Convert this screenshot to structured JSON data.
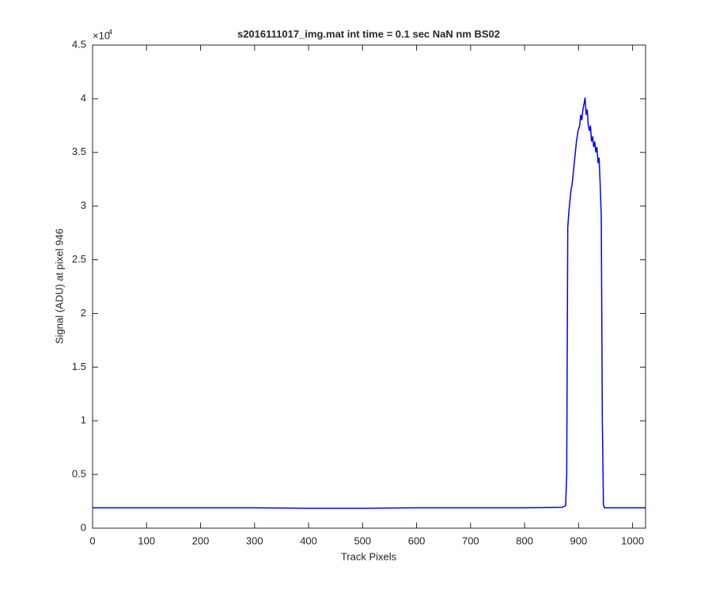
{
  "chart_data": {
    "type": "line",
    "title": "s2016111017_img.mat int time = 0.1 sec  NaN nm BS02",
    "x_label": "Track Pixels",
    "y_label": "Signal (ADU) at pixel 946",
    "y_multiplier": "×10",
    "y_multiplier_exponent": "4",
    "xlim": [
      0,
      1024
    ],
    "ylim": [
      0,
      4.5
    ],
    "xticks": [
      0,
      100,
      200,
      300,
      400,
      500,
      600,
      700,
      800,
      900,
      1000
    ],
    "yticks": [
      0,
      0.5,
      1,
      1.5,
      2,
      2.5,
      3,
      3.5,
      4,
      4.5
    ],
    "grid": false,
    "series": [
      {
        "color": "#0000ff",
        "x": [
          0,
          100,
          200,
          300,
          400,
          500,
          600,
          700,
          800,
          870,
          876,
          878,
          880,
          882,
          884,
          886,
          888,
          890,
          893,
          896,
          899,
          902,
          904,
          906,
          908,
          910,
          912,
          914,
          916,
          918,
          920,
          922,
          924,
          926,
          928,
          930,
          932,
          934,
          936,
          938,
          940,
          942,
          944,
          946,
          948,
          950,
          1000,
          1024
        ],
        "values": [
          0.19,
          0.19,
          0.19,
          0.19,
          0.185,
          0.185,
          0.19,
          0.19,
          0.19,
          0.195,
          0.21,
          0.5,
          2.8,
          2.95,
          3.05,
          3.15,
          3.2,
          3.3,
          3.45,
          3.6,
          3.7,
          3.75,
          3.85,
          3.8,
          3.9,
          3.95,
          4.01,
          3.85,
          3.9,
          3.75,
          3.7,
          3.75,
          3.6,
          3.65,
          3.55,
          3.6,
          3.5,
          3.55,
          3.4,
          3.45,
          3.2,
          2.9,
          1.0,
          0.22,
          0.19,
          0.19,
          0.19,
          0.19
        ]
      }
    ]
  }
}
